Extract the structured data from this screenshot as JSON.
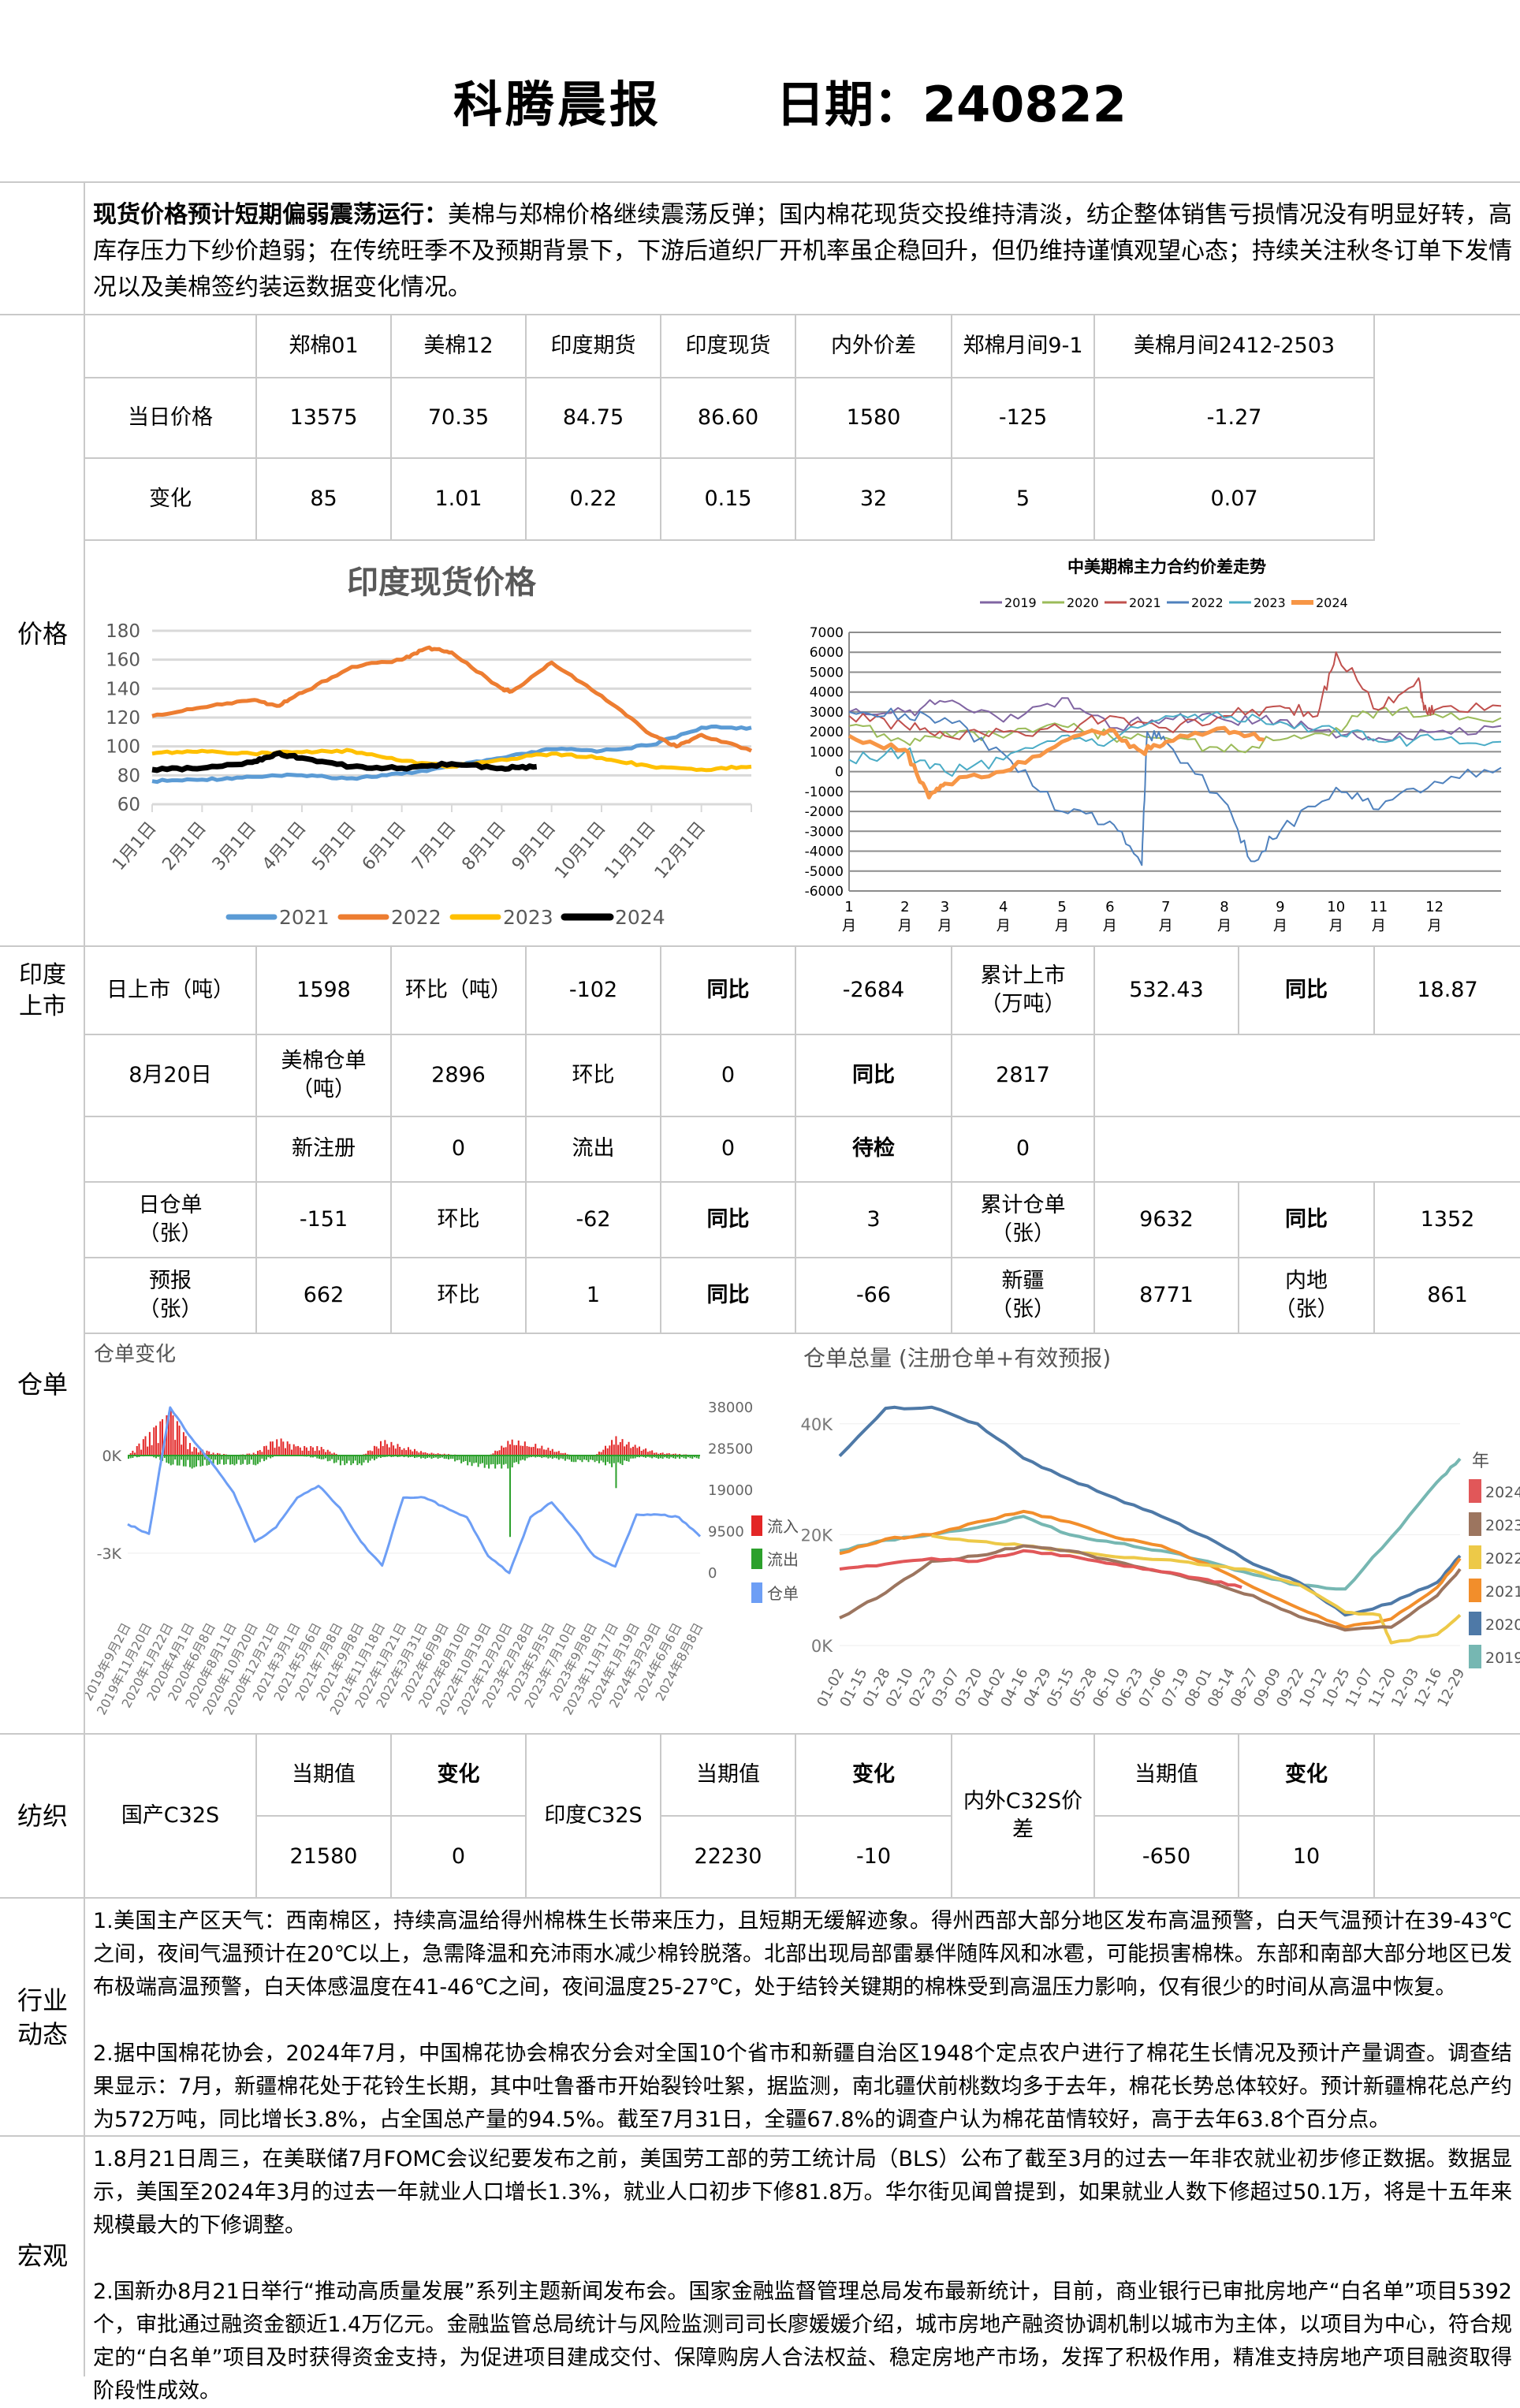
{
  "header": {
    "title": "科腾晨报",
    "date_label": "日期：240822"
  },
  "summary": {
    "lead": "现货价格预计短期偏弱震荡运行：",
    "body": "美棉与郑棉价格继续震荡反弹；国内棉花现货交投维持清淡，纺企整体销售亏损情况没有明显好转，高库存压力下纱价趋弱；在传统旺季不及预期背景下，下游后道织厂开机率虽企稳回升，但仍维持谨慎观望心态；持续关注秋冬订单下发情况以及美棉签约装运数据变化情况。"
  },
  "price": {
    "section_label": "价格",
    "columns": [
      "郑棉01",
      "美棉12",
      "印度期货",
      "印度现货",
      "内外价差",
      "郑棉月间9-1",
      "美棉月间2412-2503"
    ],
    "today": {
      "label": "当日价格",
      "values": [
        "13575",
        "70.35",
        "84.75",
        "86.60",
        "1580",
        "-125",
        "-1.27"
      ]
    },
    "change": {
      "label": "变化",
      "values": [
        "85",
        "1.01",
        "0.22",
        "0.15",
        "32",
        "5",
        "0.07"
      ]
    }
  },
  "india_listing": {
    "section_label": "印度上市",
    "cells": [
      "日上市（吨）",
      "1598",
      "环比（吨）",
      "-102",
      "同比",
      "-2684",
      "累计上市（万吨）",
      "532.43",
      "同比",
      "18.87"
    ]
  },
  "warehouse": {
    "section_label": "仓单",
    "row1": [
      "8月20日",
      "美棉仓单（吨）",
      "2896",
      "环比",
      "0",
      "同比",
      "2817"
    ],
    "row2": [
      "新注册",
      "0",
      "流出",
      "0",
      "待检",
      "0"
    ],
    "row3": [
      "日仓单（张）",
      "-151",
      "环比",
      "-62",
      "同比",
      "3",
      "累计仓单（张）",
      "9632",
      "同比",
      "1352"
    ],
    "row4": [
      "预报（张）",
      "662",
      "环比",
      "1",
      "同比",
      "-66",
      "新疆（张）",
      "8771",
      "内地（张）",
      "861"
    ]
  },
  "textile": {
    "section_label": "纺织",
    "groups": [
      {
        "name": "国产C32S",
        "value_label": "当期值",
        "change_label": "变化",
        "value": "21580",
        "change": "0"
      },
      {
        "name": "印度C32S",
        "value_label": "当期值",
        "change_label": "变化",
        "value": "22230",
        "change": "-10"
      },
      {
        "name": "内外C32S价差",
        "value_label": "当期值",
        "change_label": "变化",
        "value": "-650",
        "change": "10"
      }
    ]
  },
  "industry": {
    "section_label": "行业动态",
    "paragraphs": [
      "1.美国主产区天气：西南棉区，持续高温给得州棉株生长带来压力，且短期无缓解迹象。得州西部大部分地区发布高温预警，白天气温预计在39-43℃之间，夜间气温预计在20℃以上，急需降温和充沛雨水减少棉铃脱落。北部出现局部雷暴伴随阵风和冰雹，可能损害棉株。东部和南部大部分地区已发布极端高温预警，白天体感温度在41-46℃之间，夜间温度25-27℃，处于结铃关键期的棉株受到高温压力影响，仅有很少的时间从高温中恢复。",
      "2.据中国棉花协会，2024年7月，中国棉花协会棉农分会对全国10个省市和新疆自治区1948个定点农户进行了棉花生长情况及预计产量调查。调查结果显示：7月，新疆棉花处于花铃生长期，其中吐鲁番市开始裂铃吐絮，据监测，南北疆伏前桃数均多于去年，棉花长势总体较好。预计新疆棉花总产约为572万吨，同比增长3.8%，占全国总产量的94.5%。截至7月31日，全疆67.8%的调查户认为棉花苗情较好，高于去年63.8个百分点。"
    ]
  },
  "macro": {
    "section_label": "宏观",
    "paragraphs": [
      "1.8月21日周三，在美联储7月FOMC会议纪要发布之前，美国劳工部的劳工统计局（BLS）公布了截至3月的过去一年非农就业初步修正数据。数据显示，美国至2024年3月的过去一年就业人口增长1.3%，就业人口初步下修81.8万。华尔街见闻曾提到，如果就业人数下修超过50.1万，将是十五年来规模最大的下修调整。",
      "2.国新办8月21日举行“推动高质量发展”系列主题新闻发布会。国家金融监督管理总局发布最新统计，目前，商业银行已审批房地产“白名单”项目5392个，审批通过融资金额近1.4万亿元。金融监管总局统计与风险监测司司长廖媛媛介绍，城市房地产融资协调机制以城市为主体，以项目为中心，符合规定的“白名单”项目及时获得资金支持，为促进项目建成交付、保障购房人合法权益、稳定房地产市场，发挥了积极作用，精准支持房地产项目融资取得阶段性成效。"
    ]
  },
  "chart_data": [
    {
      "id": "india_spot",
      "type": "line",
      "title": "印度现货价格",
      "x_unit": "month index (0 = 1月1日)",
      "categories": [
        "1月1日",
        "2月1日",
        "3月1日",
        "4月1日",
        "5月1日",
        "6月1日",
        "7月1日",
        "8月1日",
        "9月1日",
        "10月1日",
        "11月1日",
        "12月1日"
      ],
      "yticks": [
        60,
        80,
        100,
        120,
        140,
        160,
        180
      ],
      "ylim": [
        60,
        180
      ],
      "legend": "bottom",
      "series": [
        {
          "name": "2021",
          "color": "#5b9bd5",
          "x": [
            0,
            1,
            2,
            3,
            4,
            5,
            6,
            7,
            8,
            9,
            10,
            11,
            12
          ],
          "values": [
            76,
            77,
            79,
            80,
            78,
            81,
            86,
            92,
            98,
            97,
            101,
            113,
            113
          ]
        },
        {
          "name": "2022",
          "color": "#ed7d31",
          "x": [
            0,
            1,
            2,
            2.5,
            3,
            4,
            5,
            5.5,
            6,
            7,
            7.2,
            8,
            9,
            10,
            10.5,
            11,
            12
          ],
          "values": [
            121,
            127,
            132,
            128,
            137,
            155,
            160,
            168,
            165,
            140,
            138,
            158,
            135,
            108,
            100,
            108,
            97
          ]
        },
        {
          "name": "2023",
          "color": "#ffc000",
          "x": [
            0,
            1,
            2,
            3,
            4,
            5,
            6,
            7,
            8,
            9,
            10,
            11,
            12
          ],
          "values": [
            95,
            97,
            95,
            96,
            97,
            90,
            86,
            91,
            95,
            92,
            86,
            84,
            86
          ]
        },
        {
          "name": "2024",
          "color": "#000000",
          "x": [
            0,
            1,
            2,
            2.5,
            3,
            4,
            5,
            6,
            7,
            7.7
          ],
          "values": [
            84,
            85,
            89,
            95,
            92,
            86,
            85,
            88,
            85,
            86
          ]
        }
      ]
    },
    {
      "id": "cn_us_spread",
      "type": "line",
      "title": "中美期棉主力合约价差走势",
      "x_unit": "trading day of year",
      "month_ticks": {
        "x": [
          0,
          21,
          36,
          58,
          80,
          98,
          119,
          141,
          162,
          183,
          199,
          220
        ],
        "labels": [
          "1",
          "2",
          "3",
          "4",
          "5",
          "6",
          "7",
          "8",
          "9",
          "10",
          "11",
          "12"
        ],
        "suffix": "月"
      },
      "xlim": [
        0,
        245
      ],
      "yticks": [
        -6000,
        -5000,
        -4000,
        -3000,
        -2000,
        -1000,
        0,
        1000,
        2000,
        3000,
        4000,
        5000,
        6000,
        7000
      ],
      "ylim": [
        -6000,
        7000
      ],
      "legend": "top",
      "series": [
        {
          "name": "2019",
          "color": "#8064a2",
          "x": [
            0,
            21,
            36,
            58,
            80,
            98,
            119,
            141,
            162,
            183,
            199,
            220,
            245
          ],
          "values": [
            3000,
            3000,
            3500,
            2500,
            3700,
            2200,
            2700,
            2600,
            2600,
            1700,
            1700,
            2000,
            2300
          ]
        },
        {
          "name": "2020",
          "color": "#9bbb59",
          "x": [
            0,
            21,
            36,
            58,
            80,
            98,
            119,
            141,
            162,
            183,
            199,
            220,
            245
          ],
          "values": [
            2300,
            1500,
            2000,
            1700,
            2300,
            1800,
            1700,
            1000,
            1600,
            2200,
            3100,
            2900,
            2700
          ]
        },
        {
          "name": "2021",
          "color": "#c0504d",
          "x": [
            0,
            21,
            36,
            58,
            80,
            98,
            119,
            141,
            162,
            176,
            183,
            199,
            214,
            216,
            220,
            245
          ],
          "values": [
            2800,
            2300,
            1800,
            2000,
            2100,
            2800,
            2200,
            2800,
            3300,
            2800,
            6000,
            3100,
            4700,
            3100,
            3100,
            3300
          ]
        },
        {
          "name": "2022",
          "color": "#4f81bd",
          "x": [
            0,
            21,
            36,
            58,
            80,
            98,
            110,
            112,
            119,
            141,
            151,
            162,
            183,
            199,
            220,
            245
          ],
          "values": [
            3000,
            2900,
            2700,
            900,
            -2000,
            -2500,
            -4700,
            2000,
            1500,
            -1500,
            -4500,
            -3000,
            -800,
            -1900,
            -500,
            200
          ]
        },
        {
          "name": "2023",
          "color": "#4bacc6",
          "x": [
            0,
            21,
            36,
            58,
            80,
            98,
            119,
            141,
            162,
            183,
            199,
            220,
            245
          ],
          "values": [
            600,
            1000,
            0,
            600,
            1800,
            1500,
            2800,
            2700,
            2500,
            2100,
            1500,
            1600,
            1500
          ]
        },
        {
          "name": "2024",
          "color": "#f79646",
          "x": [
            0,
            21,
            30,
            36,
            58,
            80,
            98,
            110,
            119,
            141,
            156
          ],
          "values": [
            1800,
            1100,
            -1300,
            -600,
            0,
            1500,
            2100,
            1000,
            1500,
            2200,
            1600
          ]
        }
      ]
    },
    {
      "id": "warehouse_change",
      "type": "bar+line",
      "title": "仓单变化",
      "categories": [
        "2019年9月2日",
        "2019年11月20日",
        "2020年1月22日",
        "2020年4月1日",
        "2020年6月8日",
        "2020年8月11日",
        "2020年10月20日",
        "2020年12月21日",
        "2021年3月1日",
        "2021年5月6日",
        "2021年7月8日",
        "2021年9月8日",
        "2021年11月18日",
        "2022年1月21日",
        "2022年3月31日",
        "2022年6月9日",
        "2022年8月10日",
        "2022年10月19日",
        "2022年12月20日",
        "2023年2月28日",
        "2023年5月5日",
        "2023年7月10日",
        "2023年9月8日",
        "2023年11月17日",
        "2024年1月19日",
        "2024年3月29日",
        "2024年6月6日",
        "2024年8月8日"
      ],
      "left_axis": {
        "ticks": [
          "0K",
          "-3K"
        ],
        "tick_values": [
          0,
          -3
        ],
        "unit": "K"
      },
      "right_axis": {
        "ticks": [
          "38000",
          "28500",
          "19000",
          "9500",
          "0"
        ],
        "tick_values": [
          38000,
          28500,
          19000,
          9500,
          0
        ]
      },
      "legend": [
        {
          "name": "流入",
          "color": "#e32626"
        },
        {
          "name": "流出",
          "color": "#2ca02c"
        },
        {
          "name": "仓单",
          "color": "#6d9ef5"
        }
      ],
      "inflow_k": [
        0,
        0.8,
        1.5,
        0.3,
        0.1,
        0,
        0.1,
        0.6,
        0.3,
        0.3,
        0,
        0,
        0.5,
        0.3,
        0.1,
        0.05,
        0,
        0,
        0.5,
        0.4,
        0.2,
        0,
        0,
        0.6,
        0.3,
        0.1,
        0.05,
        0
      ],
      "outflow_k": [
        -0.1,
        0,
        -0.3,
        -0.4,
        -0.3,
        -0.3,
        -0.3,
        0,
        0,
        -0.1,
        -0.3,
        -0.3,
        -0.05,
        -0.05,
        -0.1,
        -0.1,
        -0.3,
        -0.4,
        -2.5,
        -0.05,
        -0.1,
        -0.2,
        -0.2,
        -1.0,
        -0.05,
        -0.1,
        -0.1,
        -0.1
      ],
      "warehouse": [
        11200,
        9000,
        38000,
        31000,
        25000,
        18400,
        7200,
        10500,
        17300,
        20000,
        15000,
        7200,
        1700,
        17300,
        17300,
        15000,
        12800,
        3900,
        0,
        12800,
        16200,
        10500,
        3900,
        1500,
        13400,
        13400,
        12800,
        8400
      ]
    },
    {
      "id": "warehouse_total",
      "type": "line",
      "title": "仓单总量 (注册仓单+有效预报)",
      "categories": [
        "01-02",
        "01-15",
        "01-28",
        "02-10",
        "02-23",
        "03-07",
        "03-20",
        "04-02",
        "04-16",
        "04-29",
        "05-15",
        "05-28",
        "06-10",
        "06-23",
        "07-06",
        "07-19",
        "08-01",
        "08-14",
        "08-27",
        "09-09",
        "09-22",
        "10-12",
        "10-25",
        "11-07",
        "11-20",
        "12-03",
        "12-16",
        "12-29"
      ],
      "yticks": [
        "0K",
        "20K",
        "40K"
      ],
      "ytick_values": [
        0,
        20,
        40
      ],
      "legend_title": "年",
      "legend": "right",
      "series": [
        {
          "name": "2024",
          "color": "#e15759",
          "x": [
            0,
            2,
            4,
            6,
            8,
            10,
            12,
            14,
            16,
            17.5
          ],
          "values": [
            13.8,
            14.7,
            15.7,
            15.2,
            17.1,
            16.2,
            14.7,
            13.3,
            11.9,
            10.5
          ]
        },
        {
          "name": "2023",
          "color": "#9c755f",
          "x": [
            0,
            2,
            4,
            6,
            8,
            10,
            12,
            14,
            16,
            18,
            20,
            22,
            24,
            26,
            27
          ],
          "values": [
            5,
            9.5,
            15.2,
            16.2,
            18,
            17.1,
            15.2,
            13.3,
            11.4,
            9,
            5.2,
            2.8,
            3.3,
            9,
            13.8
          ]
        },
        {
          "name": "2022",
          "color": "#edc948",
          "x": [
            4,
            6,
            8,
            10,
            12,
            14,
            16,
            18,
            20,
            22,
            23.5,
            24,
            26,
            27
          ],
          "values": [
            19.8,
            18.8,
            18,
            17,
            16,
            15.5,
            14.5,
            13.5,
            11,
            6,
            5.5,
            0.5,
            2,
            5.5
          ]
        },
        {
          "name": "2021",
          "color": "#f28e2b",
          "x": [
            0,
            2,
            4,
            6,
            8,
            10,
            12,
            14,
            16,
            18,
            20,
            22,
            24,
            26,
            27
          ],
          "values": [
            16.6,
            19.2,
            20,
            22.3,
            24.2,
            22.3,
            19.5,
            18,
            14.7,
            10.5,
            6.7,
            3.3,
            4.8,
            10.5,
            15.7
          ]
        },
        {
          "name": "2020",
          "color": "#4e79a7",
          "x": [
            0,
            2,
            4,
            6,
            8,
            10,
            12,
            14,
            16,
            18,
            20,
            22,
            24,
            26,
            27
          ],
          "values": [
            34.2,
            42.8,
            43,
            40,
            33.8,
            30,
            26.6,
            23.3,
            19.5,
            14.7,
            11.4,
            5.5,
            7.6,
            11.4,
            16.2
          ]
        },
        {
          "name": "2019",
          "color": "#76b7b2",
          "x": [
            0,
            2,
            4,
            6,
            8,
            10,
            12,
            14,
            16,
            18,
            20,
            22,
            24,
            26,
            27
          ],
          "values": [
            17.1,
            19,
            20,
            21.3,
            23.3,
            20,
            18.5,
            17.1,
            15.2,
            12.8,
            10.9,
            10.2,
            19.5,
            29.5,
            33.7
          ]
        }
      ]
    }
  ]
}
